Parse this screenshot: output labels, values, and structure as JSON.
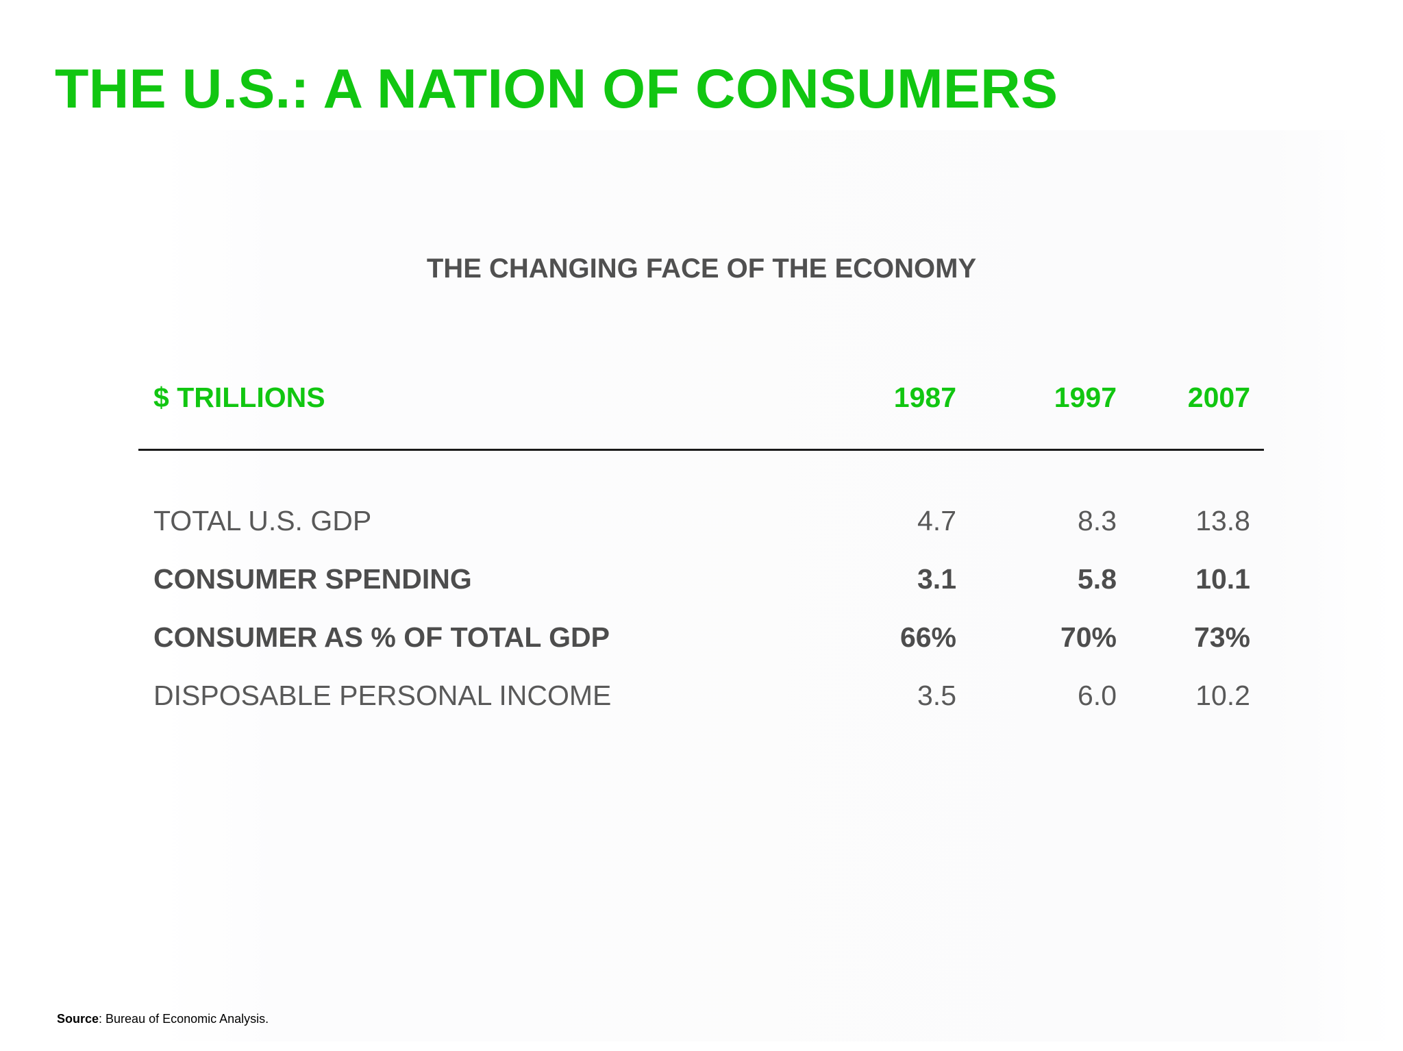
{
  "slide": {
    "title": "THE U.S.: A NATION OF CONSUMERS",
    "source_label": "Source",
    "source_text": ": Bureau of Economic Analysis."
  },
  "chart_data": {
    "type": "table",
    "title": "THE CHANGING FACE OF THE ECONOMY",
    "unit_label": "$ TRILLIONS",
    "columns": [
      "1987",
      "1997",
      "2007"
    ],
    "rows": [
      {
        "label": "TOTAL U.S. GDP",
        "values": [
          "4.7",
          "8.3",
          "13.8"
        ],
        "bold": false
      },
      {
        "label": "CONSUMER SPENDING",
        "values": [
          "3.1",
          "5.8",
          "10.1"
        ],
        "bold": true
      },
      {
        "label": "CONSUMER AS % OF TOTAL GDP",
        "values": [
          "66%",
          "70%",
          "73%"
        ],
        "bold": true
      },
      {
        "label": "DISPOSABLE PERSONAL INCOME",
        "values": [
          "3.5",
          "6.0",
          "10.2"
        ],
        "bold": false
      }
    ]
  },
  "colors": {
    "accent_green": "#11c611",
    "text_gray": "#595959",
    "rule": "#1a1a1a"
  }
}
